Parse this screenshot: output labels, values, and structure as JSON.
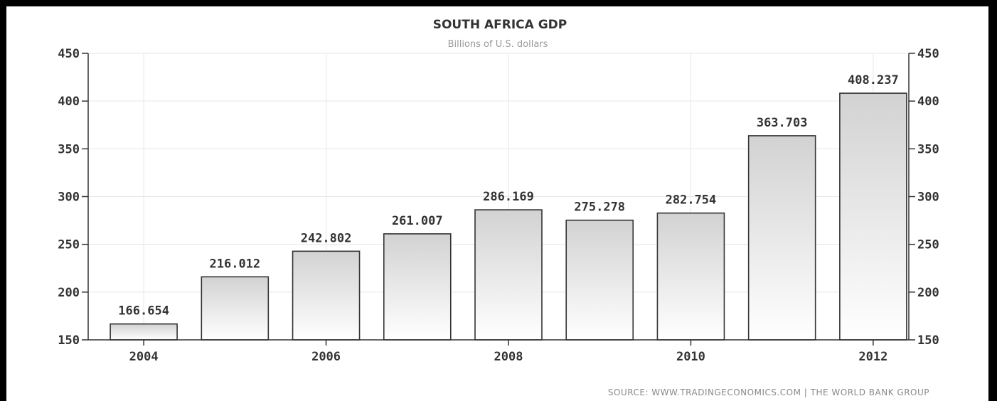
{
  "chart_data": {
    "type": "bar",
    "title": "SOUTH AFRICA GDP",
    "subtitle": "Billions of U.S. dollars",
    "categories": [
      "2004",
      "2005",
      "2006",
      "2007",
      "2008",
      "2009",
      "2010",
      "2011",
      "2012"
    ],
    "values": [
      166.654,
      216.012,
      242.802,
      261.007,
      286.169,
      275.278,
      282.754,
      363.703,
      408.237
    ],
    "value_labels": [
      "166.654",
      "216.012",
      "242.802",
      "261.007",
      "286.169",
      "275.278",
      "282.754",
      "363.703",
      "408.237"
    ],
    "x_tick_labels": [
      "2004",
      "2006",
      "2008",
      "2010",
      "2012"
    ],
    "y_ticks": [
      "150",
      "200",
      "250",
      "300",
      "350",
      "400",
      "450"
    ],
    "ylim": [
      150,
      450
    ],
    "y_axis_sides": "both",
    "grid": true,
    "source": "SOURCE: WWW.TRADINGECONOMICS.COM | THE WORLD BANK GROUP",
    "colors": {
      "bar_top": "#d2d2d2",
      "bar_bottom": "#ffffff",
      "bar_outline": "#333333",
      "grid": "#e6e6e6"
    }
  }
}
